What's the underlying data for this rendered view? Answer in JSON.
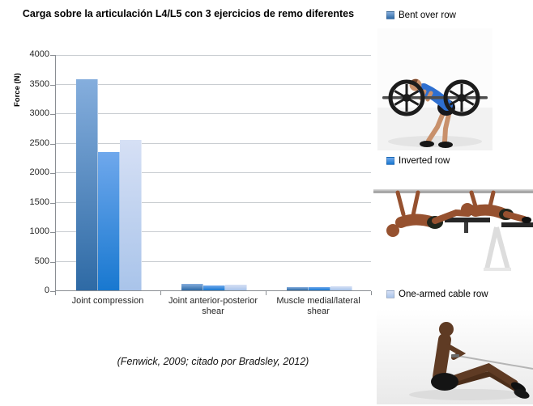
{
  "title": "Carga sobre la articulación L4/L5 con 3 ejercicios de remo diferentes",
  "citation": "(Fenwick, 2009; citado por Bradsley, 2012)",
  "colors": {
    "grid": "#c9cdd1",
    "axis": "#8a8e93",
    "text": "#262626"
  },
  "chart_data": {
    "type": "bar",
    "title": "Carga sobre la articulación L4/L5 con 3 ejercicios de remo diferentes",
    "xlabel": "",
    "ylabel": "Force (N)",
    "ylim": [
      0,
      4000
    ],
    "ytick_step": 500,
    "grid": true,
    "legend_position": "right",
    "categories": [
      "Joint compression",
      "Joint anterior-posterior shear",
      "Muscle medial/lateral shear"
    ],
    "series": [
      {
        "name": "Bent over row",
        "values": [
          3580,
          110,
          60
        ],
        "color_bottom": "#2e6aa5",
        "color_top": "#85aedd"
      },
      {
        "name": "Inverted row",
        "values": [
          2340,
          80,
          50
        ],
        "color_bottom": "#1878d0",
        "color_top": "#6fa8ec"
      },
      {
        "name": "One-armed cable row",
        "values": [
          2550,
          95,
          75
        ],
        "color_bottom": "#a9c4ea",
        "color_top": "#d6e0f5"
      }
    ],
    "annotations": [
      "(Fenwick, 2009; citado por Bradsley, 2012)"
    ]
  },
  "sidebar": {
    "images": [
      {
        "name": "bent-over-row-image"
      },
      {
        "name": "inverted-row-image"
      },
      {
        "name": "one-armed-cable-row-image"
      }
    ]
  }
}
